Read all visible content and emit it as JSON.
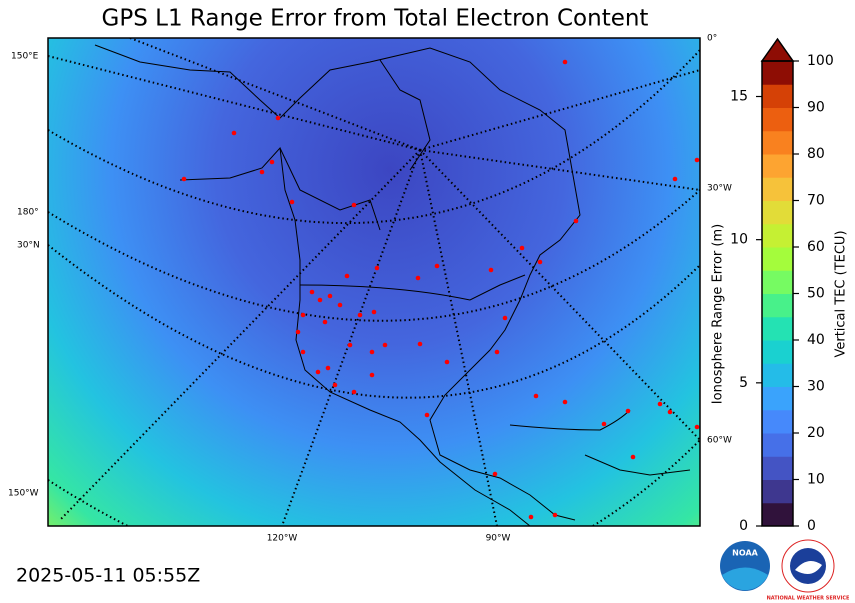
{
  "title": "GPS L1 Range Error from Total Electron Content",
  "timestamp": "2025-05-11 05:55Z",
  "map": {
    "graticule_labels": [
      "150°E",
      "180°",
      "30°N",
      "150°W",
      "0°",
      "30°W",
      "60°W",
      "120°W",
      "90°W"
    ]
  },
  "colorbar": {
    "left_label": "Ionosphere Range Error (m)",
    "left_lim": [
      0,
      16.24
    ],
    "left_ticks": [
      0,
      5,
      10,
      15
    ],
    "right_label": "Vertical TEC (TECU)",
    "right_lim": [
      0,
      100
    ],
    "right_ticks": [
      0,
      10,
      20,
      30,
      40,
      50,
      60,
      70,
      80,
      90,
      100
    ],
    "colors": [
      "#30123b",
      "#3e378f",
      "#4454c4",
      "#4670e8",
      "#4689fb",
      "#3aa3fc",
      "#24bce8",
      "#1ad1d0",
      "#24e2b3",
      "#48f18a",
      "#76fb62",
      "#a4fc3c",
      "#c5f033",
      "#e2dc38",
      "#f6c23a",
      "#fda431",
      "#f9811f",
      "#ec5f10",
      "#d54106",
      "#8e0d04"
    ],
    "extend": "max"
  },
  "logos": {
    "noaa": "NOAA",
    "nws": "NATIONAL WEATHER SERVICE"
  }
}
